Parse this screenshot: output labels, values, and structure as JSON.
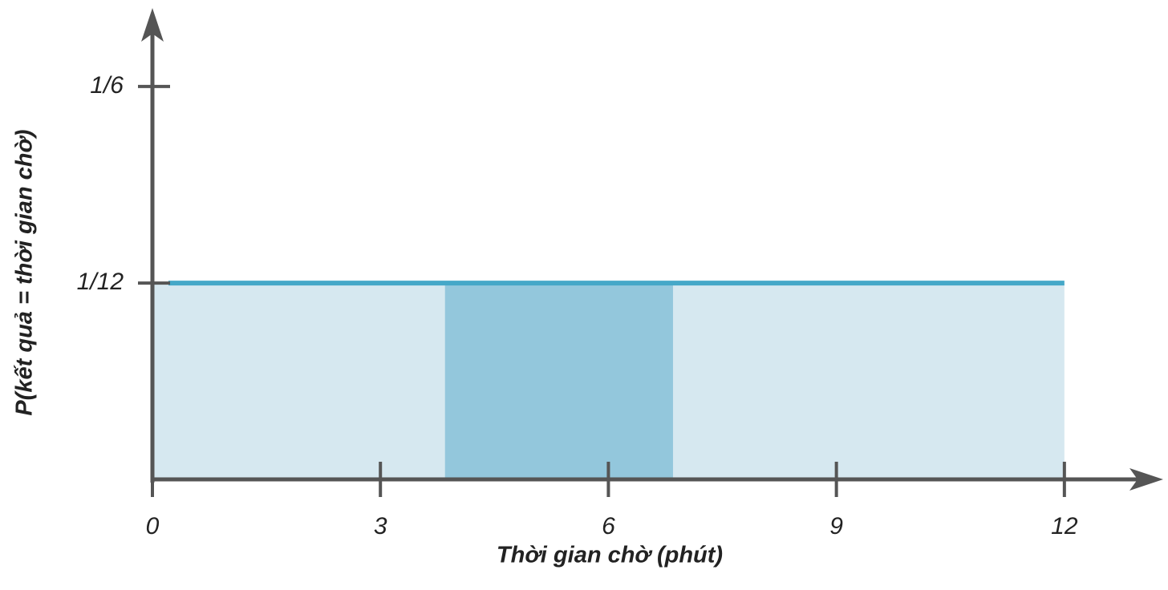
{
  "chart_data": {
    "type": "area",
    "x_label": "Thời gian chờ (phút)",
    "y_label": "P(kết quả = thời gian chờ)",
    "x": [
      0,
      12
    ],
    "values": [
      0.0833,
      0.0833
    ],
    "color": "#45a8c8",
    "fill_color": "#d6e8f0",
    "highlight_range": [
      3.85,
      6.85
    ],
    "highlight_color": "#93c7dc",
    "xlim": [
      0,
      13.3
    ],
    "xticks": [
      0,
      3,
      6,
      9,
      12
    ],
    "ylim": [
      0,
      0.2
    ],
    "yticks": [
      {
        "value": 0.0833,
        "label": "1/12"
      },
      {
        "value": 0.1667,
        "label": "1/6"
      }
    ],
    "axis_color": "#555555"
  }
}
